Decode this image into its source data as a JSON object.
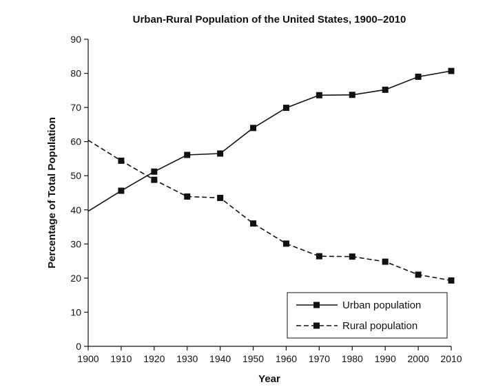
{
  "chart_data": {
    "type": "line",
    "title": "Urban-Rural Population of the United States, 1900–2010",
    "xlabel": "Year",
    "ylabel": "Percentage of Total Population",
    "x": [
      1900,
      1910,
      1920,
      1930,
      1940,
      1950,
      1960,
      1970,
      1980,
      1990,
      2000,
      2010
    ],
    "xlim": [
      1900,
      2010
    ],
    "ylim": [
      0,
      90
    ],
    "yticks": [
      0,
      10,
      20,
      30,
      40,
      50,
      60,
      70,
      80,
      90
    ],
    "grid": false,
    "legend_position": "bottom-right",
    "series": [
      {
        "name": "Urban population",
        "style": "solid",
        "markers": [
          false,
          true,
          true,
          true,
          true,
          true,
          true,
          true,
          true,
          true,
          true,
          true
        ],
        "values": [
          39.6,
          45.6,
          51.2,
          56.1,
          56.5,
          64.0,
          69.9,
          73.6,
          73.7,
          75.2,
          79.0,
          80.7
        ]
      },
      {
        "name": "Rural population",
        "style": "dashed",
        "markers": [
          false,
          true,
          true,
          true,
          true,
          true,
          true,
          true,
          true,
          true,
          true,
          true
        ],
        "values": [
          60.4,
          54.4,
          48.8,
          43.9,
          43.5,
          36.0,
          30.1,
          26.4,
          26.3,
          24.8,
          21.0,
          19.3
        ]
      }
    ]
  }
}
